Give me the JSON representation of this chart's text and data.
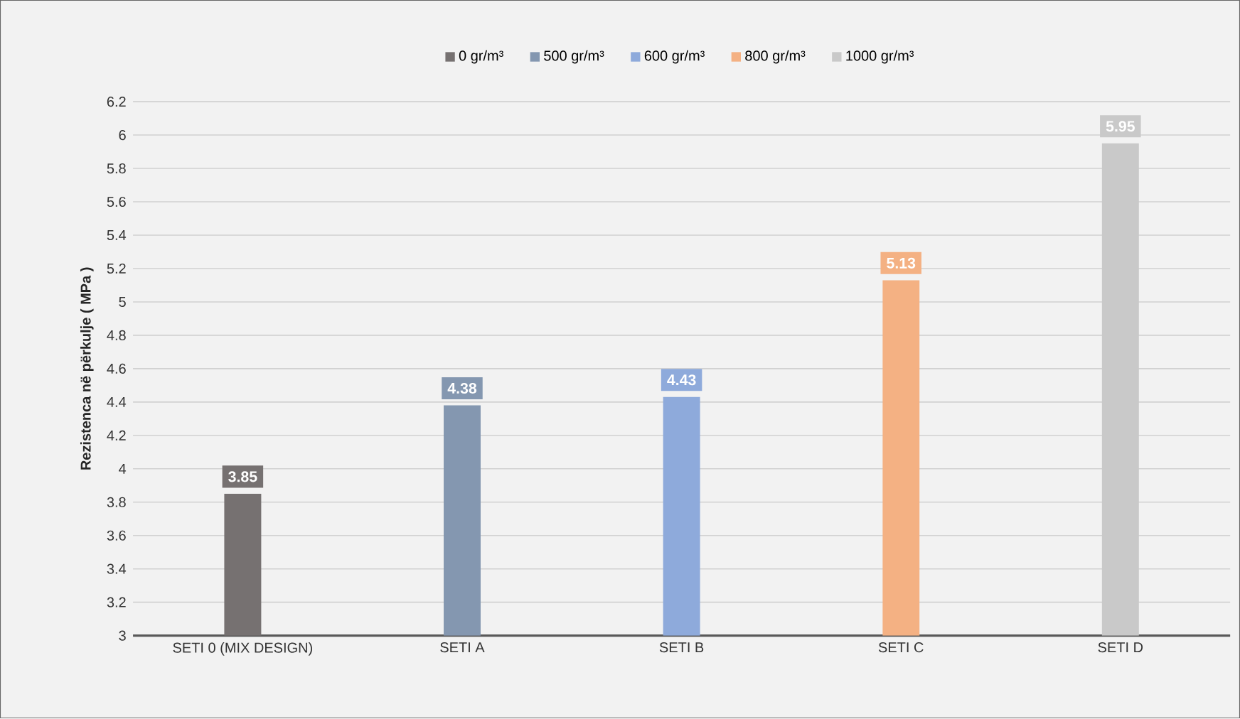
{
  "chart_data": {
    "type": "bar",
    "ylabel": "Rezistenca në përkulje ( MPa )",
    "categories": [
      "SETI 0 (MIX DESIGN)",
      "SETI A",
      "SETI B",
      "SETI C",
      "SETI D"
    ],
    "series": [
      {
        "name": "0 gr/m³",
        "color": "#767171",
        "values": [
          3.85,
          null,
          null,
          null,
          null
        ]
      },
      {
        "name": "500 gr/m³",
        "color": "#8497b0",
        "values": [
          null,
          4.38,
          null,
          null,
          null
        ]
      },
      {
        "name": "600 gr/m³",
        "color": "#8eaadb",
        "values": [
          null,
          null,
          4.43,
          null,
          null
        ]
      },
      {
        "name": "800 gr/m³",
        "color": "#f4b183",
        "values": [
          null,
          null,
          null,
          5.13,
          null
        ]
      },
      {
        "name": "1000 gr/m³",
        "color": "#c9c9c9",
        "values": [
          null,
          null,
          null,
          null,
          5.95
        ]
      }
    ],
    "ylim": [
      3,
      6.2
    ],
    "yticks": [
      3,
      3.2,
      3.4,
      3.6,
      3.8,
      4,
      4.2,
      4.4,
      4.6,
      4.8,
      5,
      5.2,
      5.4,
      5.6,
      5.8,
      6,
      6.2
    ],
    "grid": "y",
    "legend": "top",
    "data_labels": true
  }
}
